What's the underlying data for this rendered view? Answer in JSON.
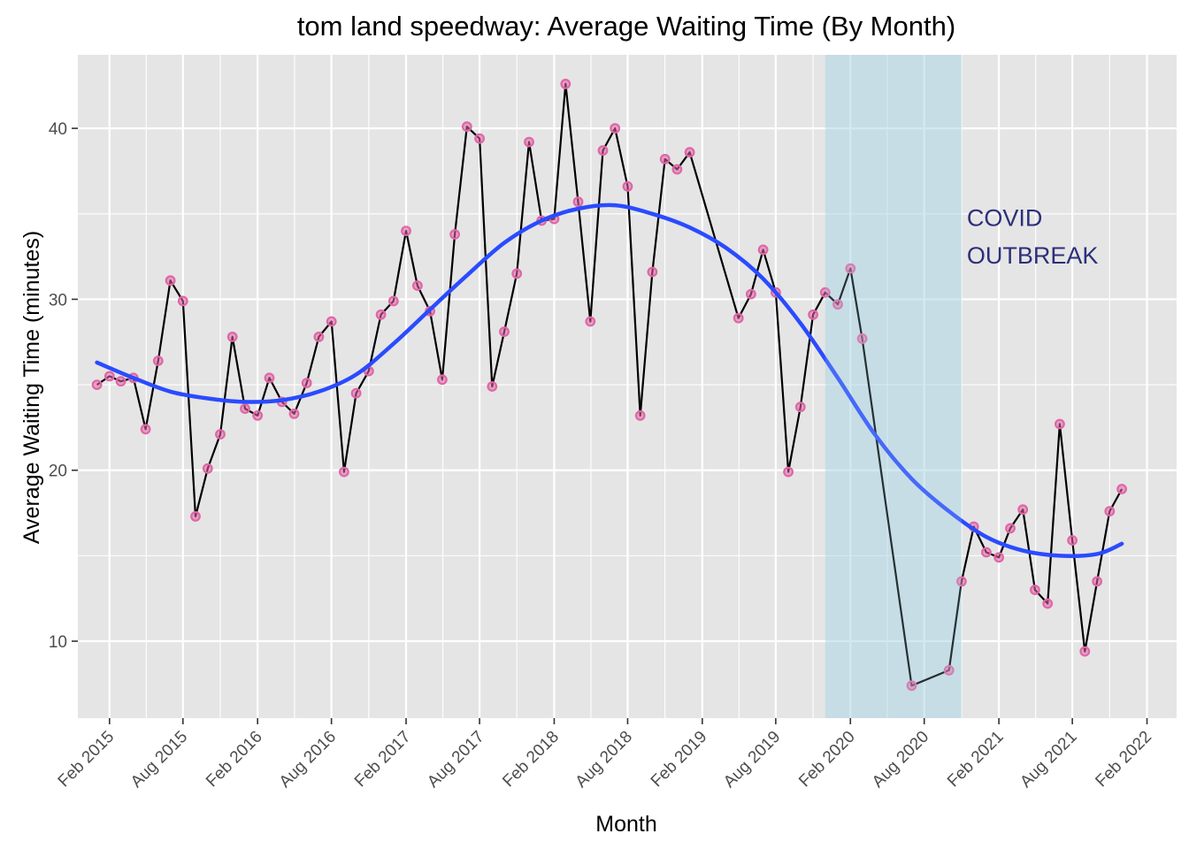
{
  "chart_data": {
    "type": "line",
    "title": "tom land speedway: Average Waiting Time (By Month)",
    "xlabel": "Month",
    "ylabel": "Average Waiting Time (minutes)",
    "x_ticks": [
      "Feb 2015",
      "Aug 2015",
      "Feb 2016",
      "Aug 2016",
      "Feb 2017",
      "Aug 2017",
      "Feb 2018",
      "Aug 2018",
      "Feb 2019",
      "Aug 2019",
      "Feb 2020",
      "Aug 2020",
      "Feb 2021",
      "Aug 2021",
      "Feb 2022"
    ],
    "y_ticks": [
      10,
      20,
      30,
      40
    ],
    "xlim": [
      "2014-11-15",
      "2022-04-15"
    ],
    "ylim": [
      5.5,
      44.3
    ],
    "grid": true,
    "shaded_region": {
      "x_start": "2019-12",
      "x_end": "2020-11",
      "color": "#add8e6",
      "label": "COVID OUTBREAK"
    },
    "annotation": {
      "lines": [
        "COVID",
        "OUTBREAK"
      ],
      "color": "#2c2f7a"
    },
    "colors": {
      "line": "#000000",
      "points": "#e066a6",
      "smooth": "#2a4bff",
      "panel": "#e5e5e5",
      "grid": "#ffffff"
    },
    "series": [
      {
        "name": "",
        "kind": "observed",
        "points": [
          [
            "2015-01",
            25.0
          ],
          [
            "2015-02",
            25.5
          ],
          [
            "2015-03",
            25.2
          ],
          [
            "2015-04",
            25.4
          ],
          [
            "2015-05",
            22.4
          ],
          [
            "2015-06",
            26.4
          ],
          [
            "2015-07",
            31.1
          ],
          [
            "2015-08",
            29.9
          ],
          [
            "2015-09",
            17.3
          ],
          [
            "2015-10",
            20.1
          ],
          [
            "2015-11",
            22.1
          ],
          [
            "2015-12",
            27.8
          ],
          [
            "2016-01",
            23.6
          ],
          [
            "2016-02",
            23.2
          ],
          [
            "2016-03",
            25.4
          ],
          [
            "2016-04",
            24.0
          ],
          [
            "2016-05",
            23.3
          ],
          [
            "2016-06",
            25.1
          ],
          [
            "2016-07",
            27.8
          ],
          [
            "2016-08",
            28.7
          ],
          [
            "2016-09",
            19.9
          ],
          [
            "2016-10",
            24.5
          ],
          [
            "2016-11",
            25.8
          ],
          [
            "2016-12",
            29.1
          ],
          [
            "2017-01",
            29.9
          ],
          [
            "2017-02",
            34.0
          ],
          [
            "2017-03",
            30.8
          ],
          [
            "2017-04",
            29.3
          ],
          [
            "2017-05",
            25.3
          ],
          [
            "2017-06",
            33.8
          ],
          [
            "2017-07",
            40.1
          ],
          [
            "2017-08",
            39.4
          ],
          [
            "2017-09",
            24.9
          ],
          [
            "2017-10",
            28.1
          ],
          [
            "2017-11",
            31.5
          ],
          [
            "2017-12",
            39.2
          ],
          [
            "2018-01",
            34.6
          ],
          [
            "2018-02",
            34.7
          ],
          [
            "2018-03",
            42.6
          ],
          [
            "2018-04",
            35.7
          ],
          [
            "2018-05",
            28.7
          ],
          [
            "2018-06",
            38.7
          ],
          [
            "2018-07",
            40.0
          ],
          [
            "2018-08",
            36.6
          ],
          [
            "2018-09",
            23.2
          ],
          [
            "2018-10",
            31.6
          ],
          [
            "2018-11",
            38.2
          ],
          [
            "2018-12",
            37.6
          ],
          [
            "2019-01",
            38.6
          ],
          [
            "2019-05",
            28.9
          ],
          [
            "2019-06",
            30.3
          ],
          [
            "2019-07",
            32.9
          ],
          [
            "2019-08",
            30.4
          ],
          [
            "2019-09",
            19.9
          ],
          [
            "2019-10",
            23.7
          ],
          [
            "2019-11",
            29.1
          ],
          [
            "2019-12",
            30.4
          ],
          [
            "2020-01",
            29.7
          ],
          [
            "2020-02",
            31.8
          ],
          [
            "2020-03",
            27.7
          ],
          [
            "2020-07",
            7.4
          ],
          [
            "2020-10",
            8.3
          ],
          [
            "2020-11",
            13.5
          ],
          [
            "2020-12",
            16.7
          ],
          [
            "2021-01",
            15.2
          ],
          [
            "2021-02",
            14.9
          ],
          [
            "2021-03",
            16.6
          ],
          [
            "2021-04",
            17.7
          ],
          [
            "2021-05",
            13.0
          ],
          [
            "2021-06",
            12.2
          ],
          [
            "2021-07",
            22.7
          ],
          [
            "2021-08",
            15.9
          ],
          [
            "2021-09",
            9.4
          ],
          [
            "2021-10",
            13.5
          ],
          [
            "2021-11",
            17.6
          ],
          [
            "2021-12",
            18.9
          ]
        ]
      },
      {
        "name": "",
        "kind": "smooth",
        "points": [
          [
            "2015-01",
            26.3
          ],
          [
            "2015-04",
            25.4
          ],
          [
            "2015-07",
            24.6
          ],
          [
            "2015-10",
            24.2
          ],
          [
            "2016-01",
            24.0
          ],
          [
            "2016-04",
            24.1
          ],
          [
            "2016-07",
            24.6
          ],
          [
            "2016-10",
            25.6
          ],
          [
            "2017-01",
            27.4
          ],
          [
            "2017-04",
            29.4
          ],
          [
            "2017-07",
            31.4
          ],
          [
            "2017-10",
            33.3
          ],
          [
            "2018-01",
            34.6
          ],
          [
            "2018-04",
            35.3
          ],
          [
            "2018-07",
            35.5
          ],
          [
            "2018-10",
            35.0
          ],
          [
            "2019-01",
            34.2
          ],
          [
            "2019-04",
            33.0
          ],
          [
            "2019-07",
            31.2
          ],
          [
            "2019-10",
            28.6
          ],
          [
            "2020-01",
            25.4
          ],
          [
            "2020-04",
            22.1
          ],
          [
            "2020-07",
            19.5
          ],
          [
            "2020-10",
            17.6
          ],
          [
            "2021-01",
            16.1
          ],
          [
            "2021-04",
            15.3
          ],
          [
            "2021-07",
            15.0
          ],
          [
            "2021-10",
            15.1
          ],
          [
            "2021-12",
            15.7
          ]
        ]
      }
    ]
  }
}
